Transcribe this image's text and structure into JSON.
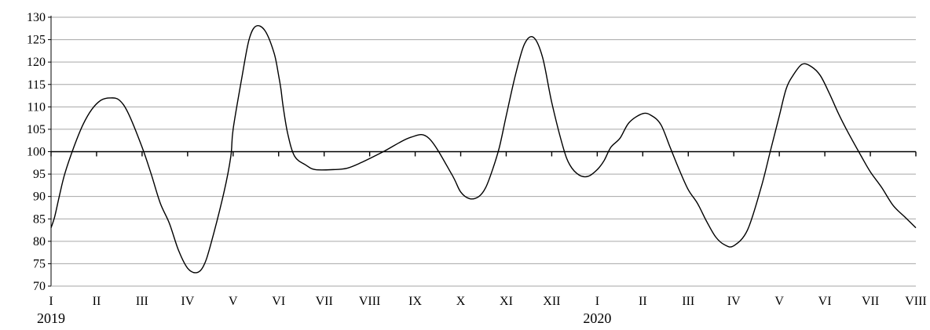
{
  "chart_data": {
    "type": "line",
    "title": "",
    "xlabel": "",
    "ylabel": "",
    "ylim": [
      70,
      130
    ],
    "yticks": [
      70,
      75,
      80,
      85,
      90,
      95,
      100,
      105,
      110,
      115,
      120,
      125,
      130
    ],
    "baseline": 100,
    "grid": "horizontal",
    "x_tick_labels": [
      "I",
      "II",
      "III",
      "IV",
      "V",
      "VI",
      "VII",
      "VIII",
      "IX",
      "X",
      "XI",
      "XII",
      "I",
      "II",
      "III",
      "IV",
      "V",
      "VI",
      "VII",
      "VIII"
    ],
    "year_labels": [
      {
        "label": "2019",
        "month_index": 0
      },
      {
        "label": "2020",
        "month_index": 12
      }
    ],
    "series": [
      {
        "color": "#000000",
        "x": [
          0,
          0.08,
          0.18,
          0.3,
          0.5,
          0.7,
          0.9,
          1.1,
          1.3,
          1.5,
          1.7,
          2.0,
          2.2,
          2.4,
          2.6,
          2.8,
          3.0,
          3.2,
          3.35,
          3.5,
          3.8,
          3.95,
          4.0,
          4.2,
          4.35,
          4.5,
          4.7,
          4.9,
          5.0,
          5.05,
          5.1,
          5.2,
          5.35,
          5.6,
          5.8,
          6.2,
          6.5,
          6.8,
          7.3,
          7.9,
          8.3,
          8.8,
          9.0,
          9.2,
          9.4,
          9.55,
          9.7,
          9.85,
          10.0,
          10.2,
          10.4,
          10.6,
          10.8,
          11.0,
          11.25,
          11.4,
          11.6,
          11.8,
          12.0,
          12.15,
          12.3,
          12.5,
          12.7,
          13.0,
          13.2,
          13.4,
          13.6,
          13.8,
          14.0,
          14.2,
          14.4,
          14.6,
          14.8,
          15.0,
          15.3,
          15.6,
          15.8,
          16.0,
          16.15,
          16.3,
          16.5,
          16.7,
          16.9,
          17.1,
          17.3,
          17.5,
          17.8,
          18.0,
          18.25,
          18.5,
          18.75,
          19.0
        ],
        "values": [
          83,
          85.5,
          90,
          95,
          101,
          106,
          109.5,
          111.5,
          112,
          111.5,
          108.5,
          101,
          95,
          88.5,
          84,
          78,
          74,
          73,
          74.5,
          79,
          91,
          99,
          105,
          117,
          125,
          128,
          127,
          122,
          117,
          114,
          110,
          104,
          99,
          97,
          96,
          96,
          96.3,
          97.5,
          100,
          103.2,
          103,
          95,
          91,
          89.5,
          90,
          92,
          96,
          101,
          108,
          117,
          124,
          125.5,
          121,
          111,
          101,
          97,
          94.8,
          94.5,
          96,
          98,
          101,
          103,
          106.5,
          108.5,
          108,
          106,
          101,
          96,
          91.5,
          88.5,
          84.5,
          81,
          79.2,
          79,
          82.5,
          92,
          100,
          108,
          114,
          117,
          119.5,
          119,
          117,
          113,
          108.5,
          104.5,
          99,
          95.5,
          92,
          88,
          85.5,
          83
        ]
      }
    ]
  }
}
